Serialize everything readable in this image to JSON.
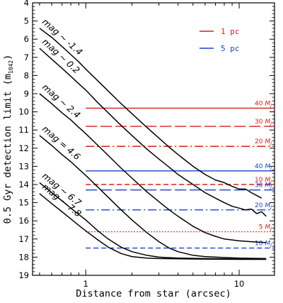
{
  "chart_data": {
    "type": "line",
    "xlabel": "Distance from star (arcsec)",
    "ylabel": "0.5 Gyr detection limit (m",
    "ylabel_sub": "1042",
    "ylabel_close": ")",
    "xscale": "log",
    "xlim": [
      0.45,
      17
    ],
    "ylim": [
      19,
      4
    ],
    "x_ticks": [
      {
        "value": 1,
        "label": "1"
      },
      {
        "value": 10,
        "label": "10"
      }
    ],
    "y_ticks": [
      4,
      5,
      6,
      7,
      8,
      9,
      10,
      11,
      12,
      13,
      14,
      15,
      16,
      17,
      18,
      19
    ],
    "legend": [
      {
        "label": "1 pc",
        "color": "#d81e1e"
      },
      {
        "label": "5 pc",
        "color": "#1f3fd0"
      }
    ],
    "curves": [
      {
        "label": "mag ~ -1.4",
        "points": [
          [
            0.5,
            5.4
          ],
          [
            0.6,
            5.9
          ],
          [
            0.7,
            6.4
          ],
          [
            0.8,
            6.85
          ],
          [
            0.9,
            7.25
          ],
          [
            1.0,
            7.65
          ],
          [
            1.2,
            8.3
          ],
          [
            1.4,
            8.85
          ],
          [
            1.7,
            9.55
          ],
          [
            2.0,
            10.1
          ],
          [
            2.5,
            10.85
          ],
          [
            3.0,
            11.45
          ],
          [
            3.5,
            11.95
          ],
          [
            4.0,
            12.35
          ],
          [
            5.0,
            13.0
          ],
          [
            6.0,
            13.45
          ],
          [
            7.0,
            13.75
          ],
          [
            8.0,
            13.9
          ],
          [
            9.0,
            14.1
          ],
          [
            10.0,
            14.25
          ],
          [
            11.0,
            14.25
          ],
          [
            12.0,
            14.45
          ],
          [
            13.0,
            14.6
          ],
          [
            14.0,
            14.75
          ]
        ]
      },
      {
        "label": "mag ~ 0.2",
        "points": [
          [
            0.5,
            6.5
          ],
          [
            0.6,
            7.1
          ],
          [
            0.7,
            7.6
          ],
          [
            0.8,
            8.05
          ],
          [
            0.9,
            8.45
          ],
          [
            1.0,
            8.8
          ],
          [
            1.2,
            9.5
          ],
          [
            1.4,
            10.05
          ],
          [
            1.7,
            10.75
          ],
          [
            2.0,
            11.3
          ],
          [
            2.5,
            12.05
          ],
          [
            3.0,
            12.6
          ],
          [
            3.5,
            13.05
          ],
          [
            4.0,
            13.45
          ],
          [
            5.0,
            14.0
          ],
          [
            6.0,
            14.45
          ],
          [
            7.0,
            14.75
          ],
          [
            8.0,
            15.0
          ],
          [
            9.0,
            15.2
          ],
          [
            10.0,
            15.3
          ],
          [
            11.0,
            15.4
          ],
          [
            12.0,
            15.35
          ],
          [
            13.0,
            15.6
          ],
          [
            14.0,
            15.5
          ],
          [
            15.0,
            15.75
          ]
        ]
      },
      {
        "label": "mag ~ 2.4",
        "points": [
          [
            0.5,
            9.0
          ],
          [
            0.6,
            9.55
          ],
          [
            0.7,
            10.05
          ],
          [
            0.8,
            10.45
          ],
          [
            0.9,
            10.85
          ],
          [
            1.0,
            11.2
          ],
          [
            1.2,
            11.85
          ],
          [
            1.4,
            12.4
          ],
          [
            1.7,
            13.1
          ],
          [
            2.0,
            13.65
          ],
          [
            2.5,
            14.4
          ],
          [
            3.0,
            14.95
          ],
          [
            3.5,
            15.4
          ],
          [
            4.0,
            15.75
          ],
          [
            5.0,
            16.3
          ],
          [
            6.0,
            16.65
          ],
          [
            7.0,
            16.85
          ],
          [
            8.0,
            17.0
          ],
          [
            10.0,
            17.1
          ],
          [
            12.0,
            17.15
          ],
          [
            15.0,
            17.2
          ]
        ]
      },
      {
        "label": "mag = 4.6",
        "points": [
          [
            0.5,
            11.3
          ],
          [
            0.6,
            11.85
          ],
          [
            0.7,
            12.35
          ],
          [
            0.8,
            12.75
          ],
          [
            0.9,
            13.15
          ],
          [
            1.0,
            13.5
          ],
          [
            1.2,
            14.15
          ],
          [
            1.4,
            14.7
          ],
          [
            1.7,
            15.4
          ],
          [
            2.0,
            15.95
          ],
          [
            2.5,
            16.65
          ],
          [
            3.0,
            17.15
          ],
          [
            3.5,
            17.5
          ],
          [
            4.0,
            17.7
          ],
          [
            5.0,
            17.9
          ],
          [
            6.0,
            17.97
          ],
          [
            8.0,
            18.02
          ],
          [
            10.0,
            18.05
          ],
          [
            15.0,
            18.08
          ]
        ]
      },
      {
        "label": "mag ~ 6.7",
        "points": [
          [
            0.5,
            13.9
          ],
          [
            0.6,
            14.45
          ],
          [
            0.7,
            14.9
          ],
          [
            0.8,
            15.3
          ],
          [
            0.9,
            15.65
          ],
          [
            1.0,
            15.95
          ],
          [
            1.2,
            16.55
          ],
          [
            1.4,
            17.0
          ],
          [
            1.7,
            17.45
          ],
          [
            2.0,
            17.7
          ],
          [
            2.5,
            17.9
          ],
          [
            3.0,
            18.0
          ],
          [
            4.0,
            18.05
          ],
          [
            6.0,
            18.08
          ],
          [
            10.0,
            18.1
          ],
          [
            15.0,
            18.1
          ]
        ]
      },
      {
        "label": "mag ~ 7.8",
        "points": [
          [
            0.5,
            14.5
          ],
          [
            0.6,
            15.05
          ],
          [
            0.7,
            15.5
          ],
          [
            0.8,
            15.9
          ],
          [
            0.9,
            16.25
          ],
          [
            1.0,
            16.55
          ],
          [
            1.2,
            17.05
          ],
          [
            1.4,
            17.45
          ],
          [
            1.7,
            17.8
          ],
          [
            2.0,
            17.97
          ],
          [
            2.5,
            18.05
          ],
          [
            3.0,
            18.08
          ],
          [
            5.0,
            18.1
          ],
          [
            10.0,
            18.12
          ],
          [
            15.0,
            18.12
          ]
        ]
      }
    ],
    "mass_limits": [
      {
        "mass": "40",
        "unit": "M",
        "sub": "J",
        "y": 9.8,
        "color": "#d81e1e",
        "style": "solid"
      },
      {
        "mass": "30",
        "unit": "M",
        "sub": "J",
        "y": 10.8,
        "color": "#d81e1e",
        "style": "longdash"
      },
      {
        "mass": "20",
        "unit": "M",
        "sub": "J",
        "y": 11.9,
        "color": "#d81e1e",
        "style": "dashdot"
      },
      {
        "mass": "10",
        "unit": "M",
        "sub": "J",
        "y": 14.0,
        "color": "#d81e1e",
        "style": "dash"
      },
      {
        "mass": "5",
        "unit": "M",
        "sub": "J",
        "y": 16.6,
        "color": "#d81e1e",
        "style": "dot"
      },
      {
        "mass": "40",
        "unit": "M",
        "sub": "J",
        "y": 13.25,
        "color": "#1f3fd0",
        "style": "solid"
      },
      {
        "mass": "30",
        "unit": "M",
        "sub": "J",
        "y": 14.3,
        "color": "#1f3fd0",
        "style": "longdash"
      },
      {
        "mass": "20",
        "unit": "M",
        "sub": "J",
        "y": 15.4,
        "color": "#1f3fd0",
        "style": "dashdot"
      },
      {
        "mass": "10",
        "unit": "M",
        "sub": "J",
        "y": 17.5,
        "color": "#1f3fd0",
        "style": "dash"
      }
    ]
  }
}
